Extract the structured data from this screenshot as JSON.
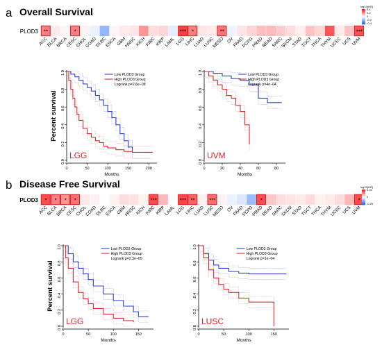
{
  "panels": [
    {
      "letter": "a",
      "title": "Overall Survival",
      "gene": "PLOD3"
    },
    {
      "letter": "b",
      "title": "Disease Free Survival",
      "gene": "PLOD3"
    }
  ],
  "cancers": [
    "ACC",
    "BLCA",
    "BRCA",
    "CESC",
    "CHOL",
    "COAD",
    "DLBC",
    "ESCA",
    "GBM",
    "HNSC",
    "KICH",
    "KIRC",
    "KIRP",
    "LAML",
    "LGG",
    "LIHC",
    "LUAD",
    "LUSC",
    "MESO",
    "OV",
    "PAAD",
    "PCPG",
    "PRAD",
    "READ",
    "SARC",
    "SKCM",
    "STAD",
    "TGCT",
    "THCA",
    "THYM",
    "UCEC",
    "UCS",
    "UVM"
  ],
  "colorbar": {
    "title": "log10(HR)",
    "ticks_os": [
      "0.4",
      "0.2",
      "0",
      "-0.2",
      "-0.4"
    ],
    "ticks_dfs": [
      "0.25",
      "0",
      "-0.25"
    ]
  },
  "colors": {
    "high": "#e8262a",
    "low": "#2b3fd6",
    "red_text": "#e0262a",
    "box": "#d22020"
  },
  "chart_data": [
    {
      "type": "heatmap",
      "title": "Overall Survival",
      "row": "PLOD3",
      "columns_ref": "cancers",
      "values": [
        0.3,
        0.05,
        0.02,
        0.3,
        0.03,
        -0.05,
        -0.25,
        0.02,
        0.05,
        0.06,
        0.25,
        0.08,
        0.1,
        -0.06,
        0.45,
        0.3,
        0.06,
        0.05,
        0.32,
        -0.04,
        0.06,
        0.1,
        0.15,
        0.16,
        0.12,
        0.08,
        0.04,
        0.14,
        0.1,
        0.4,
        0.05,
        0.14,
        0.4
      ],
      "significance": [
        "**",
        "",
        "",
        "*",
        "",
        "",
        "",
        "",
        "",
        "",
        "",
        "",
        "",
        "",
        "***",
        "*",
        "",
        "",
        "**",
        "",
        "",
        "",
        "",
        "",
        "",
        "",
        "",
        "",
        "",
        "",
        "",
        "",
        "***"
      ]
    },
    {
      "type": "line",
      "title": "",
      "panel_label": "LGG",
      "ylabel": "Percent survival",
      "xlabel": "Months",
      "x_ticks": [
        0,
        50,
        100,
        150,
        200
      ],
      "y_ticks": [
        0.0,
        0.2,
        0.4,
        0.6,
        0.8,
        1.0
      ],
      "xlim": [
        0,
        220
      ],
      "ylim": [
        0,
        1
      ],
      "legend": [
        "Low PLOD3 Group",
        "High PLOD3 Group"
      ],
      "annotation": "Logrank p=2.6e−08",
      "series": [
        {
          "name": "Low PLOD3 Group",
          "x": [
            0,
            10,
            20,
            30,
            40,
            50,
            60,
            70,
            80,
            90,
            100,
            110,
            120,
            130,
            140,
            150,
            160
          ],
          "y": [
            1.0,
            0.97,
            0.94,
            0.9,
            0.86,
            0.82,
            0.78,
            0.73,
            0.68,
            0.62,
            0.55,
            0.48,
            0.4,
            0.3,
            0.22,
            0.15,
            0.1
          ]
        },
        {
          "name": "High PLOD3 Group",
          "x": [
            0,
            5,
            10,
            15,
            20,
            25,
            30,
            40,
            50,
            60,
            70,
            80,
            90,
            100,
            120,
            140,
            160,
            210
          ],
          "y": [
            1.0,
            0.9,
            0.8,
            0.7,
            0.6,
            0.52,
            0.45,
            0.36,
            0.3,
            0.26,
            0.22,
            0.2,
            0.16,
            0.14,
            0.12,
            0.1,
            0.09,
            0.09
          ]
        }
      ]
    },
    {
      "type": "line",
      "title": "",
      "panel_label": "UVM",
      "ylabel": "",
      "xlabel": "Months",
      "x_ticks": [
        0,
        20,
        40,
        60,
        80
      ],
      "y_ticks": [
        0.0,
        0.2,
        0.4,
        0.6,
        0.8,
        1.0
      ],
      "xlim": [
        0,
        90
      ],
      "ylim": [
        0,
        1
      ],
      "legend": [
        "Low PLOD3 Group",
        "High PLOD3 Group"
      ],
      "annotation": "Logrank p=4e−04",
      "series": [
        {
          "name": "Low PLOD3 Group",
          "x": [
            0,
            10,
            20,
            30,
            40,
            50,
            60,
            70,
            86
          ],
          "y": [
            1.0,
            0.98,
            0.95,
            0.92,
            0.9,
            0.85,
            0.7,
            0.65,
            0.65
          ]
        },
        {
          "name": "High PLOD3 Group",
          "x": [
            0,
            5,
            10,
            15,
            20,
            25,
            30,
            35,
            40,
            45,
            50
          ],
          "y": [
            1.0,
            0.95,
            0.9,
            0.85,
            0.8,
            0.73,
            0.7,
            0.62,
            0.55,
            0.4,
            0.18
          ]
        }
      ]
    },
    {
      "type": "heatmap",
      "title": "Disease Free Survival",
      "row": "PLOD3",
      "columns_ref": "cancers",
      "values": [
        0.25,
        0.18,
        0.15,
        0.2,
        0.03,
        0.02,
        0.0,
        0.02,
        0.05,
        0.04,
        0.02,
        0.25,
        0.1,
        0.0,
        0.26,
        0.22,
        0.02,
        0.2,
        0.02,
        -0.03,
        -0.05,
        -0.14,
        0.25,
        0.08,
        0.05,
        0.04,
        0.03,
        0.05,
        0.02,
        0.03,
        0.05,
        0.1,
        0.25
      ],
      "significance": [
        "*",
        "*",
        "*",
        "*",
        "",
        "",
        "",
        "",
        "",
        "",
        "",
        "***",
        "",
        "",
        "***",
        "**",
        "",
        "***",
        "",
        "",
        "",
        "",
        "*",
        "",
        "",
        "",
        "",
        "",
        "",
        "",
        "",
        "",
        "*"
      ]
    },
    {
      "type": "line",
      "title": "",
      "panel_label": "LGG",
      "ylabel": "Percent survival",
      "xlabel": "Months",
      "x_ticks": [
        0,
        50,
        100,
        150
      ],
      "y_ticks": [
        0.0,
        0.2,
        0.4,
        0.6,
        0.8,
        1.0
      ],
      "xlim": [
        0,
        180
      ],
      "ylim": [
        0,
        1
      ],
      "legend": [
        "Low PLOD3 Group",
        "High PLOD3 Group"
      ],
      "annotation": "Logrank p=2.3e−05",
      "series": [
        {
          "name": "Low PLOD3 Group",
          "x": [
            0,
            10,
            20,
            30,
            40,
            50,
            60,
            80,
            100,
            120,
            140,
            150,
            170
          ],
          "y": [
            1.0,
            0.9,
            0.8,
            0.72,
            0.65,
            0.58,
            0.5,
            0.4,
            0.32,
            0.25,
            0.18,
            0.12,
            0.12
          ]
        },
        {
          "name": "High PLOD3 Group",
          "x": [
            0,
            5,
            10,
            20,
            30,
            40,
            50,
            60,
            80,
            100,
            120,
            140
          ],
          "y": [
            1.0,
            0.85,
            0.72,
            0.55,
            0.42,
            0.34,
            0.28,
            0.22,
            0.15,
            0.1,
            0.07,
            0.05
          ]
        }
      ]
    },
    {
      "type": "line",
      "title": "",
      "panel_label": "LUSC",
      "ylabel": "",
      "xlabel": "Months",
      "x_ticks": [
        0,
        50,
        100,
        150
      ],
      "y_ticks": [
        0.0,
        0.2,
        0.4,
        0.6,
        0.8,
        1.0
      ],
      "xlim": [
        0,
        180
      ],
      "ylim": [
        0,
        1
      ],
      "legend": [
        "Low PLOD3 Group",
        "High PLOD3 Group"
      ],
      "annotation": "Logrank p=1e−04",
      "series": [
        {
          "name": "Low PLOD3 Group",
          "x": [
            0,
            10,
            20,
            30,
            40,
            60,
            80,
            100,
            120,
            150,
            175
          ],
          "y": [
            1.0,
            0.9,
            0.82,
            0.76,
            0.72,
            0.68,
            0.66,
            0.65,
            0.65,
            0.65,
            0.65
          ]
        },
        {
          "name": "High PLOD3 Group",
          "x": [
            0,
            10,
            20,
            30,
            40,
            50,
            60,
            80,
            100,
            120,
            140,
            150
          ],
          "y": [
            1.0,
            0.85,
            0.7,
            0.6,
            0.52,
            0.46,
            0.42,
            0.35,
            0.3,
            0.3,
            0.3,
            0.0
          ]
        }
      ]
    }
  ]
}
